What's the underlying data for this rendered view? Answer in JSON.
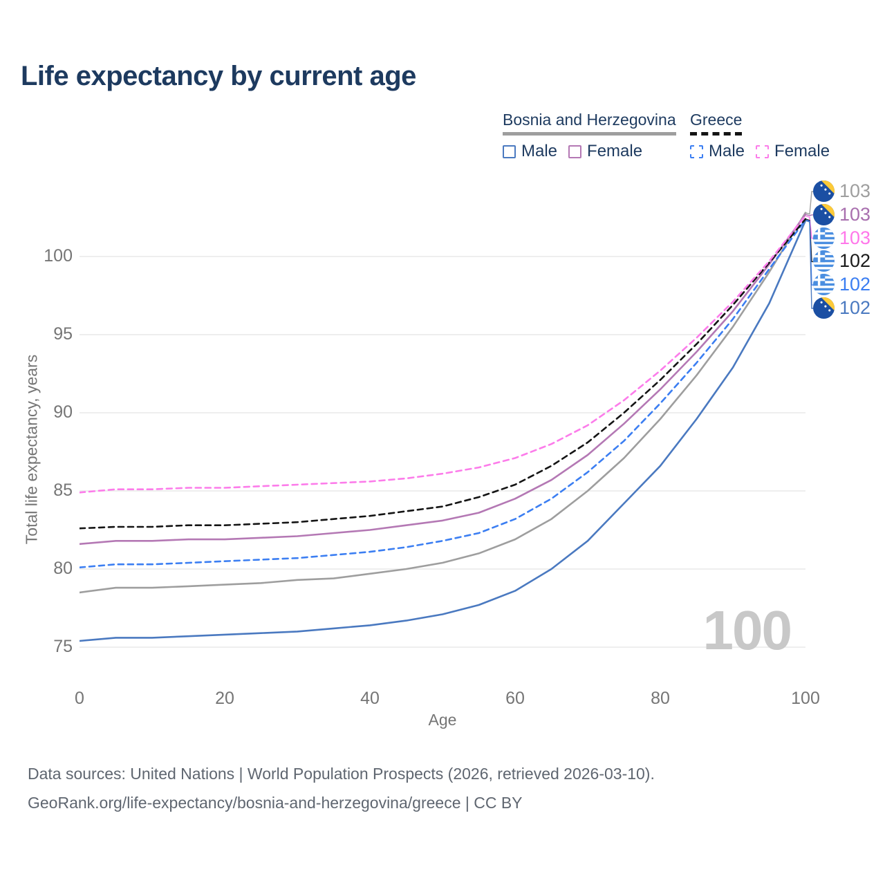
{
  "title": "Life expectancy by current age",
  "watermark_age": "100",
  "axes": {
    "x_label": "Age",
    "y_label": "Total life expectancy, years",
    "x_ticks": [
      0,
      20,
      40,
      60,
      80,
      100
    ],
    "y_ticks": [
      75,
      80,
      85,
      90,
      95,
      100
    ]
  },
  "legend": {
    "groups": [
      {
        "label": "Bosnia and Herzegovina",
        "line_style": "solid",
        "line_color": "#9e9e9e",
        "items": [
          {
            "label": "Male",
            "color": "#4a79c0",
            "dashed": false
          },
          {
            "label": "Female",
            "color": "#b478b4",
            "dashed": false
          }
        ]
      },
      {
        "label": "Greece",
        "line_style": "dashed",
        "line_color": "#141414",
        "items": [
          {
            "label": "Male",
            "color": "#3b7ef2",
            "dashed": true
          },
          {
            "label": "Female",
            "color": "#fc7cea",
            "dashed": true
          }
        ]
      }
    ]
  },
  "end_labels": [
    {
      "value": "103",
      "flag": "ba",
      "color": "#9e9e9e",
      "series_name": "Bosnia and Herzegovina — Both sexes"
    },
    {
      "value": "103",
      "flag": "ba",
      "color": "#a86fae",
      "series_name": "Bosnia and Herzegovina — Female"
    },
    {
      "value": "103",
      "flag": "gr",
      "color": "#ff77ea",
      "series_name": "Greece — Female"
    },
    {
      "value": "102",
      "flag": "gr",
      "color": "#1a1a1a",
      "series_name": "Greece — Both sexes"
    },
    {
      "value": "102",
      "flag": "gr",
      "color": "#3b7ef2",
      "series_name": "Greece — Male"
    },
    {
      "value": "102",
      "flag": "ba",
      "color": "#4a79c0",
      "series_name": "Bosnia and Herzegovina — Male"
    }
  ],
  "footer": {
    "line1": "Data sources: United Nations | World Population Prospects (2026, retrieved 2026-03-10).",
    "line2": "GeoRank.org/life-expectancy/bosnia-and-herzegovina/greece | CC BY"
  },
  "chart_data": {
    "type": "line",
    "title": "Life expectancy by current age",
    "xlabel": "Age",
    "ylabel": "Total life expectancy, years",
    "xlim": [
      0,
      100
    ],
    "ylim": [
      73,
      104
    ],
    "grid": true,
    "legend_position": "top-right",
    "x": [
      0,
      5,
      10,
      15,
      20,
      25,
      30,
      35,
      40,
      45,
      50,
      55,
      60,
      65,
      70,
      75,
      80,
      85,
      90,
      95,
      100
    ],
    "series": [
      {
        "name": "Bosnia and Herzegovina — Male",
        "country": "Bosnia and Herzegovina",
        "sex": "Male",
        "color": "#4a79c0",
        "dashed": false,
        "end_label": 102,
        "values": [
          75.4,
          75.6,
          75.6,
          75.7,
          75.8,
          75.9,
          76.0,
          76.2,
          76.4,
          76.7,
          77.1,
          77.7,
          78.6,
          80.0,
          81.8,
          84.2,
          86.6,
          89.6,
          92.9,
          97.0,
          102.3
        ]
      },
      {
        "name": "Bosnia and Herzegovina — Both sexes",
        "country": "Bosnia and Herzegovina",
        "sex": "Both sexes",
        "color": "#9e9e9e",
        "dashed": false,
        "end_label": 103,
        "values": [
          78.5,
          78.8,
          78.8,
          78.9,
          79.0,
          79.1,
          79.3,
          79.4,
          79.7,
          80.0,
          80.4,
          81.0,
          81.9,
          83.2,
          85.0,
          87.1,
          89.6,
          92.4,
          95.5,
          99.0,
          102.8
        ]
      },
      {
        "name": "Bosnia and Herzegovina — Female",
        "country": "Bosnia and Herzegovina",
        "sex": "Female",
        "color": "#b478b4",
        "dashed": false,
        "end_label": 103,
        "values": [
          81.6,
          81.8,
          81.8,
          81.9,
          81.9,
          82.0,
          82.1,
          82.3,
          82.5,
          82.8,
          83.1,
          83.6,
          84.5,
          85.7,
          87.3,
          89.3,
          91.5,
          93.9,
          96.5,
          99.5,
          102.7
        ]
      },
      {
        "name": "Greece — Male",
        "country": "Greece",
        "sex": "Male",
        "color": "#3b7ef2",
        "dashed": true,
        "end_label": 102,
        "values": [
          80.1,
          80.3,
          80.3,
          80.4,
          80.5,
          80.6,
          80.7,
          80.9,
          81.1,
          81.4,
          81.8,
          82.3,
          83.2,
          84.5,
          86.2,
          88.2,
          90.6,
          93.2,
          96.0,
          99.2,
          102.35
        ]
      },
      {
        "name": "Greece — Both sexes",
        "country": "Greece",
        "sex": "Both sexes",
        "color": "#141414",
        "dashed": true,
        "end_label": 102,
        "values": [
          82.6,
          82.7,
          82.7,
          82.8,
          82.8,
          82.9,
          83.0,
          83.2,
          83.4,
          83.7,
          84.0,
          84.6,
          85.4,
          86.6,
          88.1,
          90.0,
          92.1,
          94.4,
          96.9,
          99.6,
          102.4
        ]
      },
      {
        "name": "Greece — Female",
        "country": "Greece",
        "sex": "Female",
        "color": "#fc7cea",
        "dashed": true,
        "end_label": 103,
        "values": [
          84.9,
          85.1,
          85.1,
          85.2,
          85.2,
          85.3,
          85.4,
          85.5,
          85.6,
          85.8,
          86.1,
          86.5,
          87.1,
          88.0,
          89.2,
          90.8,
          92.7,
          94.8,
          97.1,
          99.7,
          102.6
        ]
      }
    ]
  }
}
